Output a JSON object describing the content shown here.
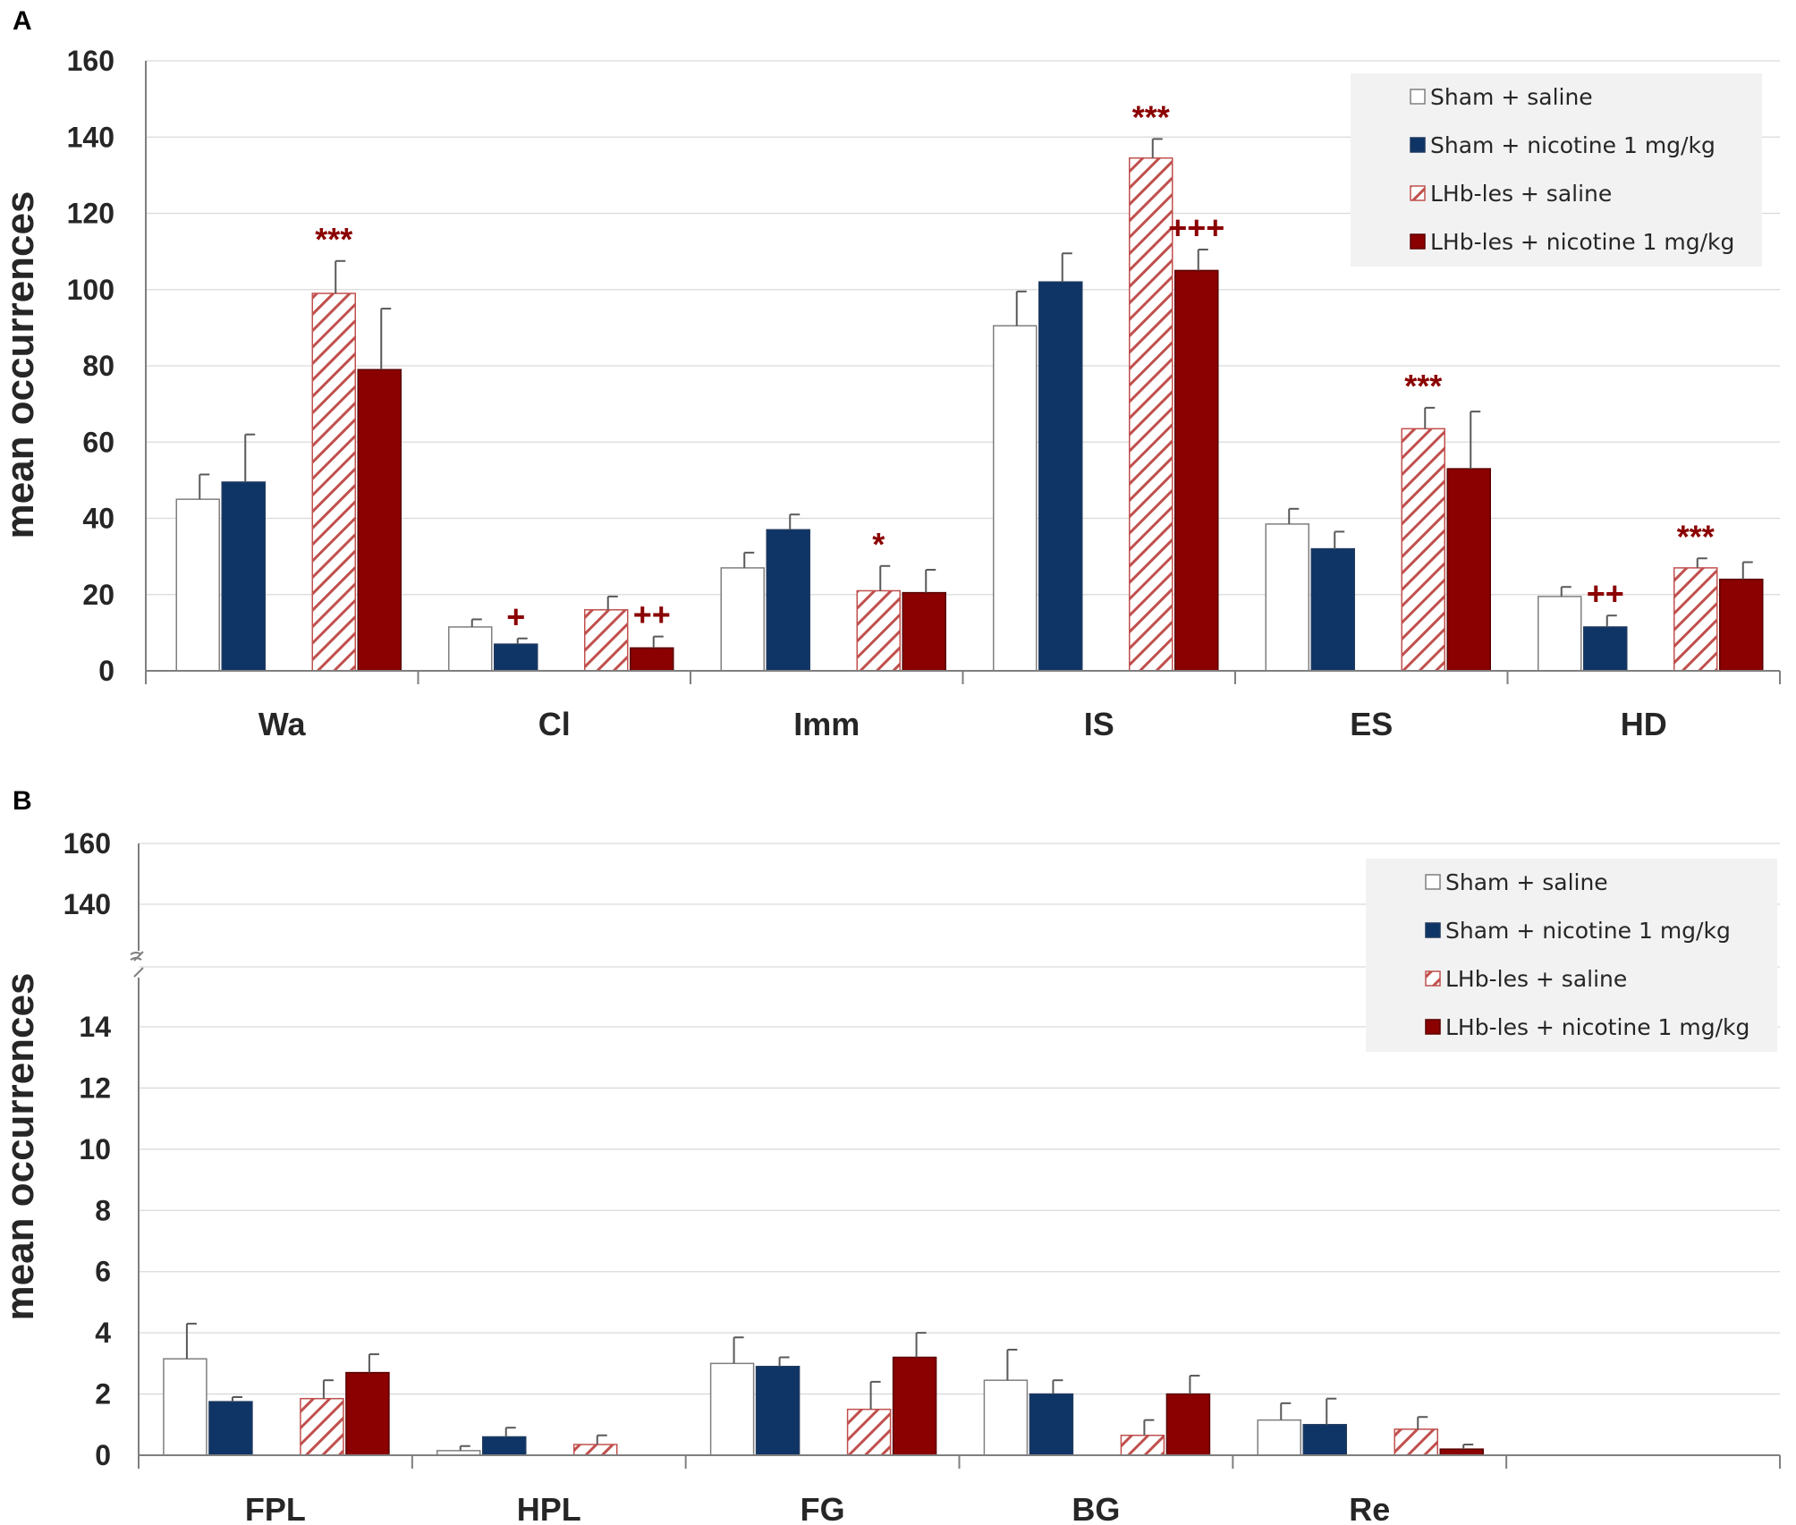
{
  "legend": {
    "labels": [
      "Sham + saline",
      "Sham + nicotine 1 mg/kg",
      "LHb-les + saline",
      "LHb-les + nicotine 1 mg/kg"
    ]
  },
  "colors": {
    "sham_saline": "#ffffff",
    "sham_nicotine": "#0f3466",
    "lhb_saline_hatch": "#c0504d",
    "lhb_nicotine": "#8b0000",
    "significance": "#8b0000",
    "legend_bg": "#f2f2f2"
  },
  "chart_data": [
    {
      "panel": "A",
      "type": "bar",
      "ylabel": "mean occurrences",
      "xlabel": "",
      "ylim": [
        0,
        160
      ],
      "yticks": [
        0,
        20,
        40,
        60,
        80,
        100,
        120,
        140,
        160
      ],
      "grid": true,
      "legend_position": "top-right",
      "categories": [
        "Wa",
        "Cl",
        "Imm",
        "IS",
        "ES",
        "HD"
      ],
      "series": [
        {
          "name": "Sham + saline",
          "values": [
            45,
            11.5,
            27,
            90.5,
            38.5,
            19.5
          ],
          "errors": [
            6.5,
            2,
            4,
            9,
            4,
            2.5
          ]
        },
        {
          "name": "Sham + nicotine 1 mg/kg",
          "values": [
            49.5,
            7,
            37,
            102,
            32,
            11.5
          ],
          "errors": [
            12.5,
            1.5,
            4,
            7.5,
            4.5,
            3
          ]
        },
        {
          "name": "LHb-les + saline",
          "values": [
            99,
            16,
            21,
            134.5,
            63.5,
            27
          ],
          "errors": [
            8.5,
            3.5,
            6.5,
            5,
            5.5,
            2.5
          ]
        },
        {
          "name": "LHb-les + nicotine 1 mg/kg",
          "values": [
            79,
            6,
            20.5,
            105,
            53,
            24
          ],
          "errors": [
            16,
            3,
            6,
            5.5,
            15,
            4.5
          ]
        }
      ],
      "annotations": [
        {
          "category": "Wa",
          "series": 2,
          "text": "***"
        },
        {
          "category": "Cl",
          "series": 1,
          "text": "+"
        },
        {
          "category": "Cl",
          "series": 3,
          "text": "++"
        },
        {
          "category": "Imm",
          "series": 2,
          "text": "*"
        },
        {
          "category": "IS",
          "series": 2,
          "text": "***"
        },
        {
          "category": "IS",
          "series": 3,
          "text": "+++"
        },
        {
          "category": "ES",
          "series": 2,
          "text": "***"
        },
        {
          "category": "HD",
          "series": 1,
          "text": "++"
        },
        {
          "category": "HD",
          "series": 2,
          "text": "***"
        }
      ]
    },
    {
      "panel": "B",
      "type": "bar",
      "ylabel": "mean occurrences",
      "xlabel": "",
      "ylim": [
        0,
        160
      ],
      "axis_break": [
        15,
        135
      ],
      "yticks": [
        0,
        2,
        4,
        6,
        8,
        10,
        12,
        14,
        140,
        160
      ],
      "grid": true,
      "legend_position": "top-right",
      "categories": [
        "FPL",
        "HPL",
        "FG",
        "BG",
        "Re"
      ],
      "series": [
        {
          "name": "Sham + saline",
          "values": [
            3.15,
            0.15,
            3.0,
            2.45,
            1.15
          ],
          "errors": [
            1.15,
            0.15,
            0.85,
            1.0,
            0.55
          ]
        },
        {
          "name": "Sham + nicotine 1 mg/kg",
          "values": [
            1.75,
            0.6,
            2.9,
            2.0,
            1.0
          ],
          "errors": [
            0.15,
            0.3,
            0.3,
            0.45,
            0.85
          ]
        },
        {
          "name": "LHb-les + saline",
          "values": [
            1.85,
            0.35,
            1.5,
            0.65,
            0.85
          ],
          "errors": [
            0.6,
            0.3,
            0.9,
            0.5,
            0.4
          ]
        },
        {
          "name": "LHb-les + nicotine 1 mg/kg",
          "values": [
            2.7,
            0.0,
            3.2,
            2.0,
            0.2
          ],
          "errors": [
            0.6,
            0.0,
            0.8,
            0.6,
            0.15
          ]
        }
      ]
    }
  ]
}
